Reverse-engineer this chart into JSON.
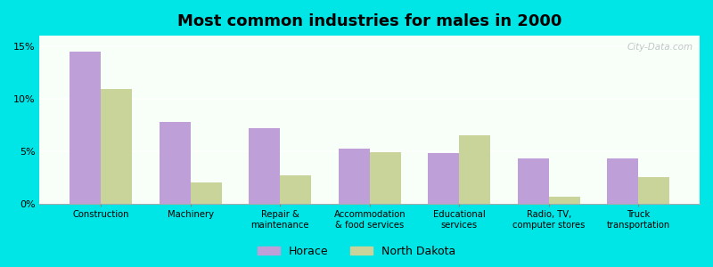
{
  "title": "Most common industries for males in 2000",
  "categories": [
    "Construction",
    "Machinery",
    "Repair &\nmaintenance",
    "Accommodation\n& food services",
    "Educational\nservices",
    "Radio, TV,\ncomputer stores",
    "Truck\ntransportation"
  ],
  "horace": [
    14.5,
    7.8,
    7.2,
    5.2,
    4.8,
    4.3,
    4.3
  ],
  "north_dakota": [
    10.9,
    2.0,
    2.7,
    4.9,
    6.5,
    0.7,
    2.5
  ],
  "horace_color": "#bf9fd8",
  "nd_color": "#c8d49a",
  "fig_bg": "#00e5e5",
  "plot_bg": "#f8fff8",
  "ylim": [
    0,
    16
  ],
  "yticks": [
    0,
    5,
    10,
    15
  ],
  "ytick_labels": [
    "0%",
    "5%",
    "10%",
    "15%"
  ],
  "legend_horace": "Horace",
  "legend_nd": "North Dakota",
  "bar_width": 0.35,
  "title_fontsize": 13
}
